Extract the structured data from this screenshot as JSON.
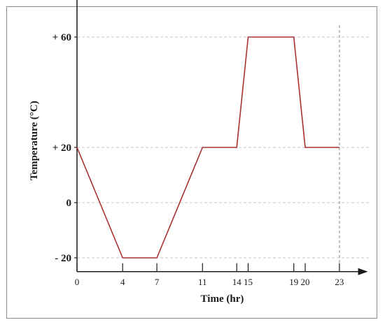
{
  "chart_data": {
    "type": "line",
    "title": "",
    "xlabel": "Time (hr)",
    "ylabel": "Temperature (°C)",
    "x": [
      0,
      4,
      7,
      11,
      14,
      15,
      19,
      20,
      23
    ],
    "series": [
      {
        "values": [
          20,
          -20,
          -20,
          20,
          20,
          60,
          60,
          20,
          20
        ],
        "color": "#a83232"
      }
    ],
    "xticks": [
      0,
      4,
      7,
      11,
      14,
      15,
      19,
      20,
      23
    ],
    "xtick_labels": [
      "0",
      "4",
      "7",
      "11",
      "14",
      "15",
      "19",
      "20",
      "23"
    ],
    "yticks": [
      -20,
      0,
      20,
      60
    ],
    "ytick_labels": [
      "- 20",
      "0",
      "+ 20",
      "+ 60"
    ],
    "xlim": [
      0,
      25
    ],
    "ylim": [
      -25,
      75
    ],
    "grid": true,
    "gridColor": "#c8c8c8",
    "axisColor": "#1a1a1a"
  }
}
